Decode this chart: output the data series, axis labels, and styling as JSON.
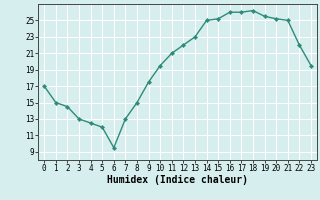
{
  "x": [
    0,
    1,
    2,
    3,
    4,
    5,
    6,
    7,
    8,
    9,
    10,
    11,
    12,
    13,
    14,
    15,
    16,
    17,
    18,
    19,
    20,
    21,
    22,
    23
  ],
  "y": [
    17,
    15,
    14.5,
    13,
    12.5,
    12,
    9.5,
    13,
    15,
    17.5,
    19.5,
    21,
    22,
    23,
    25,
    25.2,
    26,
    26,
    26.2,
    25.5,
    25.2,
    25,
    22,
    19.5
  ],
  "line_color": "#2e8b7a",
  "marker": "D",
  "marker_size": 2.2,
  "line_width": 1.0,
  "xlabel": "Humidex (Indice chaleur)",
  "xlim": [
    -0.5,
    23.5
  ],
  "ylim": [
    8,
    27
  ],
  "yticks": [
    9,
    11,
    13,
    15,
    17,
    19,
    21,
    23,
    25
  ],
  "xticks": [
    0,
    1,
    2,
    3,
    4,
    5,
    6,
    7,
    8,
    9,
    10,
    11,
    12,
    13,
    14,
    15,
    16,
    17,
    18,
    19,
    20,
    21,
    22,
    23
  ],
  "bg_color": "#d6eeee",
  "grid_color": "#ffffff",
  "tick_label_fontsize": 5.5,
  "xlabel_fontsize": 7.0
}
